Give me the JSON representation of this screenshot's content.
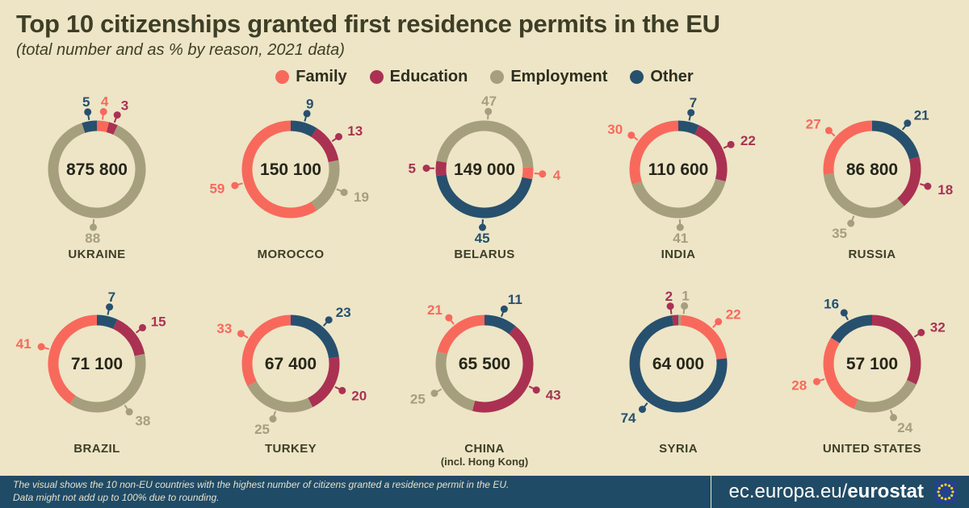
{
  "header": {
    "title": "Top 10 citizenships granted first residence permits in the EU",
    "subtitle": "(total number and as % by reason, 2021 data)"
  },
  "legend": [
    {
      "label": "Family",
      "color": "#f8695c"
    },
    {
      "label": "Education",
      "color": "#aa3152"
    },
    {
      "label": "Employment",
      "color": "#a59f7d"
    },
    {
      "label": "Other",
      "color": "#27506e"
    }
  ],
  "colors": {
    "background": "#ede5c6",
    "title_text": "#3e3e27",
    "total_text": "#26261a",
    "footer_bg": "#204b66",
    "footer_text": "#e6e1cd"
  },
  "chart_data": [
    {
      "type": "donut",
      "country": "UKRAINE",
      "total_label": "875 800",
      "unit": "%",
      "rotation": 0,
      "segments": [
        {
          "reason": "Family",
          "value": 4
        },
        {
          "reason": "Education",
          "value": 3
        },
        {
          "reason": "Employment",
          "value": 88
        },
        {
          "reason": "Other",
          "value": 5
        }
      ]
    },
    {
      "type": "donut",
      "country": "MOROCCO",
      "total_label": "150 100",
      "unit": "%",
      "rotation": 0,
      "segments": [
        {
          "reason": "Other",
          "value": 9
        },
        {
          "reason": "Education",
          "value": 13
        },
        {
          "reason": "Employment",
          "value": 19
        },
        {
          "reason": "Family",
          "value": 59
        }
      ]
    },
    {
      "type": "donut",
      "country": "BELARUS",
      "total_label": "149 000",
      "unit": "%",
      "rotation": 280,
      "segments": [
        {
          "reason": "Employment",
          "value": 47
        },
        {
          "reason": "Family",
          "value": 4
        },
        {
          "reason": "Other",
          "value": 45
        },
        {
          "reason": "Education",
          "value": 5
        }
      ]
    },
    {
      "type": "donut",
      "country": "INDIA",
      "total_label": "110 600",
      "unit": "%",
      "rotation": 0,
      "segments": [
        {
          "reason": "Other",
          "value": 7
        },
        {
          "reason": "Education",
          "value": 22
        },
        {
          "reason": "Employment",
          "value": 41
        },
        {
          "reason": "Family",
          "value": 30
        }
      ]
    },
    {
      "type": "donut",
      "country": "RUSSIA",
      "total_label": "86 800",
      "unit": "%",
      "rotation": 0,
      "segments": [
        {
          "reason": "Other",
          "value": 21
        },
        {
          "reason": "Education",
          "value": 18
        },
        {
          "reason": "Employment",
          "value": 35
        },
        {
          "reason": "Family",
          "value": 27
        }
      ]
    },
    {
      "type": "donut",
      "country": "BRAZIL",
      "total_label": "71 100",
      "unit": "%",
      "rotation": 0,
      "segments": [
        {
          "reason": "Other",
          "value": 7
        },
        {
          "reason": "Education",
          "value": 15
        },
        {
          "reason": "Employment",
          "value": 38
        },
        {
          "reason": "Family",
          "value": 41
        }
      ]
    },
    {
      "type": "donut",
      "country": "TURKEY",
      "total_label": "67 400",
      "unit": "%",
      "rotation": 0,
      "segments": [
        {
          "reason": "Other",
          "value": 23
        },
        {
          "reason": "Education",
          "value": 20
        },
        {
          "reason": "Employment",
          "value": 25
        },
        {
          "reason": "Family",
          "value": 33
        }
      ]
    },
    {
      "type": "donut",
      "country": "CHINA",
      "country_sub": "(incl. Hong Kong)",
      "total_label": "65 500",
      "unit": "%",
      "rotation": 0,
      "segments": [
        {
          "reason": "Other",
          "value": 11
        },
        {
          "reason": "Education",
          "value": 43
        },
        {
          "reason": "Employment",
          "value": 25
        },
        {
          "reason": "Family",
          "value": 21
        }
      ]
    },
    {
      "type": "donut",
      "country": "SYRIA",
      "total_label": "64 000",
      "unit": "%",
      "rotation": 0,
      "segments": [
        {
          "reason": "Employment",
          "value": 1
        },
        {
          "reason": "Family",
          "value": 22
        },
        {
          "reason": "Other",
          "value": 74
        },
        {
          "reason": "Education",
          "value": 2
        }
      ]
    },
    {
      "type": "donut",
      "country": "UNITED STATES",
      "total_label": "57 100",
      "unit": "%",
      "rotation": 0,
      "segments": [
        {
          "reason": "Education",
          "value": 32
        },
        {
          "reason": "Employment",
          "value": 24
        },
        {
          "reason": "Family",
          "value": 28
        },
        {
          "reason": "Other",
          "value": 16
        }
      ]
    }
  ],
  "footer": {
    "note1": "The visual shows the 10 non-EU countries with the highest number of citizens granted a residence permit in the EU.",
    "note2": "Data might not add up to 100% due to rounding.",
    "site_prefix": "ec.europa.eu/",
    "site_bold": "eurostat"
  }
}
